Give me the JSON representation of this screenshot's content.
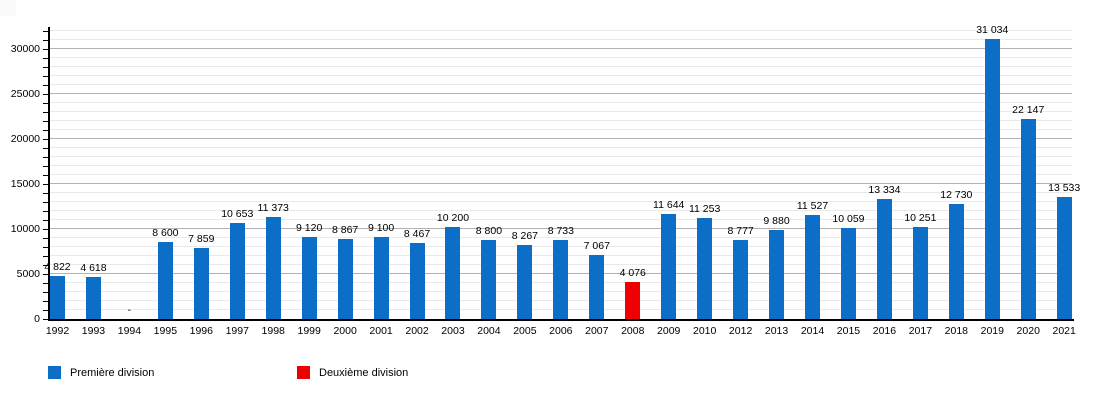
{
  "chart_data": {
    "type": "bar",
    "title": "",
    "xlabel": "",
    "ylabel": "",
    "categories": [
      "1992",
      "1993",
      "1994",
      "1995",
      "1996",
      "1997",
      "1998",
      "1999",
      "2000",
      "2001",
      "2002",
      "2003",
      "2004",
      "2005",
      "2006",
      "2007",
      "2008",
      "2009",
      "2010",
      "2012",
      "2013",
      "2014",
      "2015",
      "2016",
      "2017",
      "2018",
      "2019",
      "2020",
      "2021"
    ],
    "points": [
      {
        "year": "1992",
        "value": 4822,
        "label": "4 822",
        "series": "Première division"
      },
      {
        "year": "1993",
        "value": 4618,
        "label": "4 618",
        "series": "Première division"
      },
      {
        "year": "1994",
        "value": null,
        "label": "-",
        "series": "Première division"
      },
      {
        "year": "1995",
        "value": 8600,
        "label": "8 600",
        "series": "Première division"
      },
      {
        "year": "1996",
        "value": 7859,
        "label": "7 859",
        "series": "Première division"
      },
      {
        "year": "1997",
        "value": 10653,
        "label": "10 653",
        "series": "Première division"
      },
      {
        "year": "1998",
        "value": 11373,
        "label": "11 373",
        "series": "Première division"
      },
      {
        "year": "1999",
        "value": 9120,
        "label": "9 120",
        "series": "Première division"
      },
      {
        "year": "2000",
        "value": 8867,
        "label": "8 867",
        "series": "Première division"
      },
      {
        "year": "2001",
        "value": 9100,
        "label": "9 100",
        "series": "Première division"
      },
      {
        "year": "2002",
        "value": 8467,
        "label": "8 467",
        "series": "Première division"
      },
      {
        "year": "2003",
        "value": 10200,
        "label": "10 200",
        "series": "Première division"
      },
      {
        "year": "2004",
        "value": 8800,
        "label": "8 800",
        "series": "Première division"
      },
      {
        "year": "2005",
        "value": 8267,
        "label": "8 267",
        "series": "Première division"
      },
      {
        "year": "2006",
        "value": 8733,
        "label": "8 733",
        "series": "Première division"
      },
      {
        "year": "2007",
        "value": 7067,
        "label": "7 067",
        "series": "Première division"
      },
      {
        "year": "2008",
        "value": 4076,
        "label": "4 076",
        "series": "Deuxième division"
      },
      {
        "year": "2009",
        "value": 11644,
        "label": "11 644",
        "series": "Première division"
      },
      {
        "year": "2010",
        "value": 11253,
        "label": "11 253",
        "series": "Première division"
      },
      {
        "year": "2012",
        "value": 8777,
        "label": "8 777",
        "series": "Première division"
      },
      {
        "year": "2013",
        "value": 9880,
        "label": "9 880",
        "series": "Première division"
      },
      {
        "year": "2014",
        "value": 11527,
        "label": "11 527",
        "series": "Première division"
      },
      {
        "year": "2015",
        "value": 10059,
        "label": "10 059",
        "series": "Première division"
      },
      {
        "year": "2016",
        "value": 13334,
        "label": "13 334",
        "series": "Première division"
      },
      {
        "year": "2017",
        "value": 10251,
        "label": "10 251",
        "series": "Première division"
      },
      {
        "year": "2018",
        "value": 12730,
        "label": "12 730",
        "series": "Première division"
      },
      {
        "year": "2019",
        "value": 31034,
        "label": "31 034",
        "series": "Première division"
      },
      {
        "year": "2020",
        "value": 22147,
        "label": "22 147",
        "series": "Première division"
      },
      {
        "year": "2021",
        "value": 13533,
        "label": "13 533",
        "series": "Première division"
      }
    ],
    "series": [
      {
        "name": "Première division",
        "color": "#0d6ec8"
      },
      {
        "name": "Deuxième division",
        "color": "#ee0000"
      }
    ],
    "ylim": [
      0,
      32300
    ],
    "y_axis_tick_labels": [
      "0",
      "5000",
      "10000",
      "15000",
      "20000",
      "25000",
      "30000"
    ],
    "y_major_step": 5000,
    "y_minor_step": 1000,
    "grid": true,
    "legend_position": "bottom"
  },
  "legend": {
    "items": [
      {
        "label": "Première division",
        "color": "#0d6ec8"
      },
      {
        "label": "Deuxième division",
        "color": "#ee0000"
      }
    ]
  },
  "colors": {
    "bar_blue": "#0d6ec8",
    "bar_red": "#ee0000",
    "grid_major": "#b2b2b2",
    "grid_minor": "#e9e9e9",
    "axis": "#000000",
    "background": "#ffffff"
  }
}
